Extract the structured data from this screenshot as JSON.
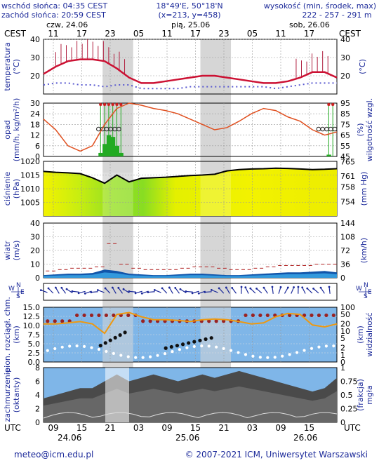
{
  "header": {
    "sunrise": "wschód słońca: 04:35 CEST",
    "sunset": "zachód słońca: 20:59 CEST",
    "coords": "18°49'E, 50°18'N",
    "grid": "(x=213, y=458)",
    "elev_title": "wysokość (min, środek, max)",
    "elev_values": "222 - 257 - 291 m"
  },
  "top_axis": {
    "tz": "CEST",
    "days": [
      "czw, 24.06",
      "pią, 25.06",
      "sob, 26.06"
    ],
    "hours": [
      "11",
      "17",
      "23",
      "05",
      "11",
      "17",
      "23",
      "05",
      "11",
      "17"
    ]
  },
  "bottom_axis": {
    "tz": "UTC",
    "hours": [
      "09",
      "15",
      "21",
      "03",
      "09",
      "15",
      "21",
      "03",
      "09",
      "15"
    ],
    "dates": [
      "24.06",
      "25.06",
      "26.06"
    ]
  },
  "footer": {
    "email": "meteo@icm.edu.pl",
    "copyright": "© 2007-2021 ICM, Uniwersytet Warszawski"
  },
  "colors": {
    "label_blue": "#1c2a9a",
    "night": "#d6d6d6",
    "temp_line": "#cc1133",
    "precip_green": "#22aa22",
    "humidity_line": "#e05020",
    "pressure_line": "#000000",
    "pressure_yellow": "#f2f200",
    "pressure_green": "#88dd22",
    "sky_blue": "#7fb6e8",
    "fog_dark": "#4a4a4a",
    "visibility_line": "#ee9911",
    "wind_arrow": "#1c2a9a"
  },
  "chart_data": [
    {
      "type": "line",
      "name": "temperature",
      "ylabel_left": "temperatura\n(°C)",
      "ylabel_right": "(°C)",
      "ylim": [
        10,
        40
      ],
      "yticks": [
        20,
        30,
        40
      ],
      "x_hours": [
        0,
        3,
        6,
        9,
        12,
        15,
        18,
        21,
        24,
        27,
        30,
        33,
        36,
        39,
        42,
        45,
        48,
        51,
        54,
        57,
        60,
        63,
        66,
        69,
        72
      ],
      "temperature": [
        21,
        25,
        28,
        29,
        29,
        28,
        24,
        19,
        16,
        16,
        17,
        18,
        19,
        20,
        20,
        19,
        18,
        17,
        16,
        16,
        17,
        19,
        22,
        22,
        19
      ],
      "dew_point": [
        15,
        16,
        16,
        15,
        15,
        14,
        15,
        15,
        13,
        13,
        13,
        13,
        14,
        14,
        14,
        14,
        14,
        14,
        14,
        13,
        14,
        15,
        16,
        16,
        16
      ]
    },
    {
      "type": "line",
      "name": "precipitation_humidity",
      "ylabel_left": "opad\n(mm/h, kg/m²/h)",
      "ylabel_right": "(%)\nwilgotność wzgl.",
      "ylim_left": [
        0,
        30
      ],
      "yticks_left": [
        0,
        6,
        12,
        18,
        24,
        30
      ],
      "yticks_right": [
        45,
        55,
        65,
        75,
        85,
        95
      ],
      "humidity": [
        80,
        70,
        55,
        50,
        55,
        75,
        90,
        95,
        93,
        90,
        88,
        85,
        80,
        75,
        70,
        72,
        78,
        85,
        90,
        88,
        82,
        78,
        70,
        65,
        68
      ],
      "precipitation_bars": [
        {
          "hour": 14,
          "value": 2
        },
        {
          "hour": 15,
          "value": 7
        },
        {
          "hour": 16,
          "value": 12
        },
        {
          "hour": 17,
          "value": 11
        },
        {
          "hour": 18,
          "value": 6
        },
        {
          "hour": 19,
          "value": 2
        },
        {
          "hour": 70,
          "value": 1
        }
      ]
    },
    {
      "type": "line",
      "name": "pressure",
      "ylabel_left": "ciśnienie\n(hPa)",
      "ylabel_right": "(mm Hg)",
      "ylim": [
        1000,
        1020
      ],
      "yticks_left": [
        1005,
        1010,
        1015,
        1020
      ],
      "yticks_right": [
        754,
        758,
        761,
        765
      ],
      "pressure": [
        1016.3,
        1016,
        1015.8,
        1015.5,
        1014,
        1012,
        1015,
        1012.5,
        1013.8,
        1014,
        1014.2,
        1014.5,
        1014.8,
        1015,
        1015.3,
        1016.5,
        1017,
        1017.2,
        1017.3,
        1017.5,
        1017.4,
        1017.2,
        1017,
        1017.1,
        1017.3
      ]
    },
    {
      "type": "area",
      "name": "wind",
      "ylabel_left": "wiatr\n(m/s)",
      "ylabel_right": "(km/h)",
      "ylim": [
        0,
        40
      ],
      "yticks_left": [
        0,
        10,
        20,
        30,
        40
      ],
      "yticks_right": [
        0,
        36,
        72,
        108,
        144
      ],
      "wind_speed": [
        2,
        2.5,
        3,
        3,
        3.5,
        6,
        5,
        3,
        2.5,
        2,
        2,
        2.5,
        3,
        3,
        2.5,
        2,
        2,
        2.5,
        3,
        3.5,
        4,
        4,
        4.5,
        5,
        4
      ],
      "gusts": [
        5,
        6,
        7,
        7,
        8,
        25,
        10,
        7,
        6,
        6,
        6,
        7,
        8,
        8,
        7,
        6,
        6,
        7,
        8,
        9,
        9,
        9,
        10,
        10,
        9
      ]
    },
    {
      "type": "line",
      "name": "cloud_base_visibility",
      "ylabel_left": "pion. rozciągł. chm.\n(km)",
      "ylabel_right": "(km)\nwidzialność",
      "ylim_left": [
        0,
        15
      ],
      "yticks_left": [
        "0.0",
        "2.5",
        "5.0",
        "7.5",
        "10.0",
        "12.5",
        "15.0"
      ],
      "yticks_right": [
        "0",
        "1",
        "2",
        "5",
        "10",
        "20",
        "50",
        "100"
      ],
      "visibility_line": [
        20,
        20,
        22,
        25,
        20,
        8,
        50,
        60,
        40,
        30,
        30,
        28,
        25,
        30,
        32,
        30,
        25,
        20,
        22,
        40,
        55,
        50,
        18,
        15,
        20
      ]
    },
    {
      "type": "area",
      "name": "cloudiness_fog",
      "ylabel_left": "zachmurzenie\n(oktanty)",
      "ylabel_right": "(frakcja)\nmgła",
      "ylim_left": [
        0,
        8
      ],
      "yticks_left": [
        0,
        2,
        4,
        6,
        8
      ],
      "yticks_right": [
        "0",
        "0.25",
        "0.5",
        "0.75",
        "1"
      ],
      "cloud_cover": [
        3.5,
        4,
        4.5,
        5,
        5,
        6,
        7,
        6,
        6.5,
        7,
        6.5,
        6,
        6.5,
        7,
        6.5,
        7,
        7.5,
        7,
        6.5,
        6,
        5.5,
        5,
        4.5,
        5,
        6.5
      ]
    }
  ]
}
